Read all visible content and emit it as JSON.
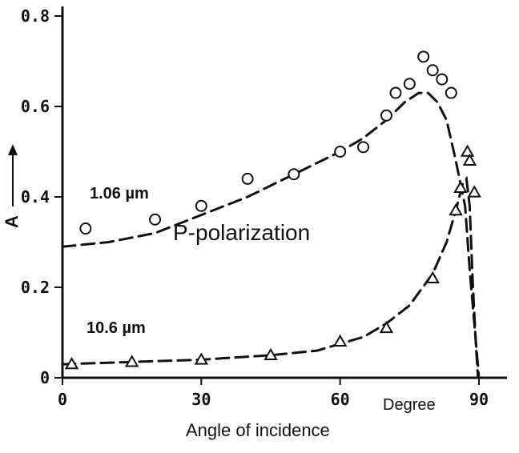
{
  "chart_data": {
    "type": "scatter",
    "title": "",
    "xlabel": "Angle of incidence",
    "x_unit": "Degree",
    "ylabel": "A",
    "xlim": [
      0,
      93
    ],
    "ylim": [
      0,
      0.8
    ],
    "x_ticks": [
      "0",
      "30",
      "60",
      "90"
    ],
    "y_ticks": [
      "0",
      "0.2",
      "0.4",
      "0.6",
      "0.8"
    ],
    "grid": false,
    "annotation": "P-polarization",
    "series": [
      {
        "name": "1.06 µm",
        "marker": "circle",
        "points": [
          [
            5,
            0.33
          ],
          [
            20,
            0.35
          ],
          [
            30,
            0.38
          ],
          [
            40,
            0.44
          ],
          [
            50,
            0.45
          ],
          [
            60,
            0.5
          ],
          [
            65,
            0.51
          ],
          [
            70,
            0.58
          ],
          [
            72,
            0.63
          ],
          [
            75,
            0.65
          ],
          [
            78,
            0.71
          ],
          [
            80,
            0.68
          ],
          [
            82,
            0.66
          ],
          [
            84,
            0.63
          ]
        ],
        "curve": [
          [
            0,
            0.29
          ],
          [
            10,
            0.3
          ],
          [
            20,
            0.32
          ],
          [
            30,
            0.36
          ],
          [
            40,
            0.4
          ],
          [
            50,
            0.45
          ],
          [
            60,
            0.5
          ],
          [
            65,
            0.53
          ],
          [
            70,
            0.57
          ],
          [
            74,
            0.61
          ],
          [
            77,
            0.63
          ],
          [
            79,
            0.63
          ],
          [
            81,
            0.61
          ],
          [
            83,
            0.57
          ],
          [
            85,
            0.48
          ],
          [
            87,
            0.38
          ],
          [
            88,
            0.24
          ],
          [
            89,
            0.12
          ],
          [
            90,
            0.0
          ]
        ]
      },
      {
        "name": "10.6 µm",
        "marker": "triangle",
        "points": [
          [
            2,
            0.03
          ],
          [
            15,
            0.035
          ],
          [
            30,
            0.04
          ],
          [
            45,
            0.05
          ],
          [
            60,
            0.08
          ],
          [
            70,
            0.11
          ],
          [
            80,
            0.22
          ],
          [
            85,
            0.37
          ],
          [
            86,
            0.42
          ],
          [
            87.5,
            0.5
          ],
          [
            88,
            0.48
          ],
          [
            89,
            0.41
          ]
        ],
        "curve": [
          [
            0,
            0.03
          ],
          [
            15,
            0.035
          ],
          [
            30,
            0.04
          ],
          [
            45,
            0.05
          ],
          [
            55,
            0.06
          ],
          [
            60,
            0.075
          ],
          [
            65,
            0.09
          ],
          [
            70,
            0.12
          ],
          [
            75,
            0.16
          ],
          [
            80,
            0.23
          ],
          [
            83,
            0.3
          ],
          [
            85,
            0.37
          ],
          [
            86.5,
            0.43
          ],
          [
            87.3,
            0.44
          ],
          [
            88,
            0.38
          ],
          [
            88.7,
            0.2
          ],
          [
            89.3,
            0.08
          ],
          [
            89.8,
            0.0
          ]
        ]
      }
    ]
  },
  "style": {
    "ink": "#111111"
  }
}
